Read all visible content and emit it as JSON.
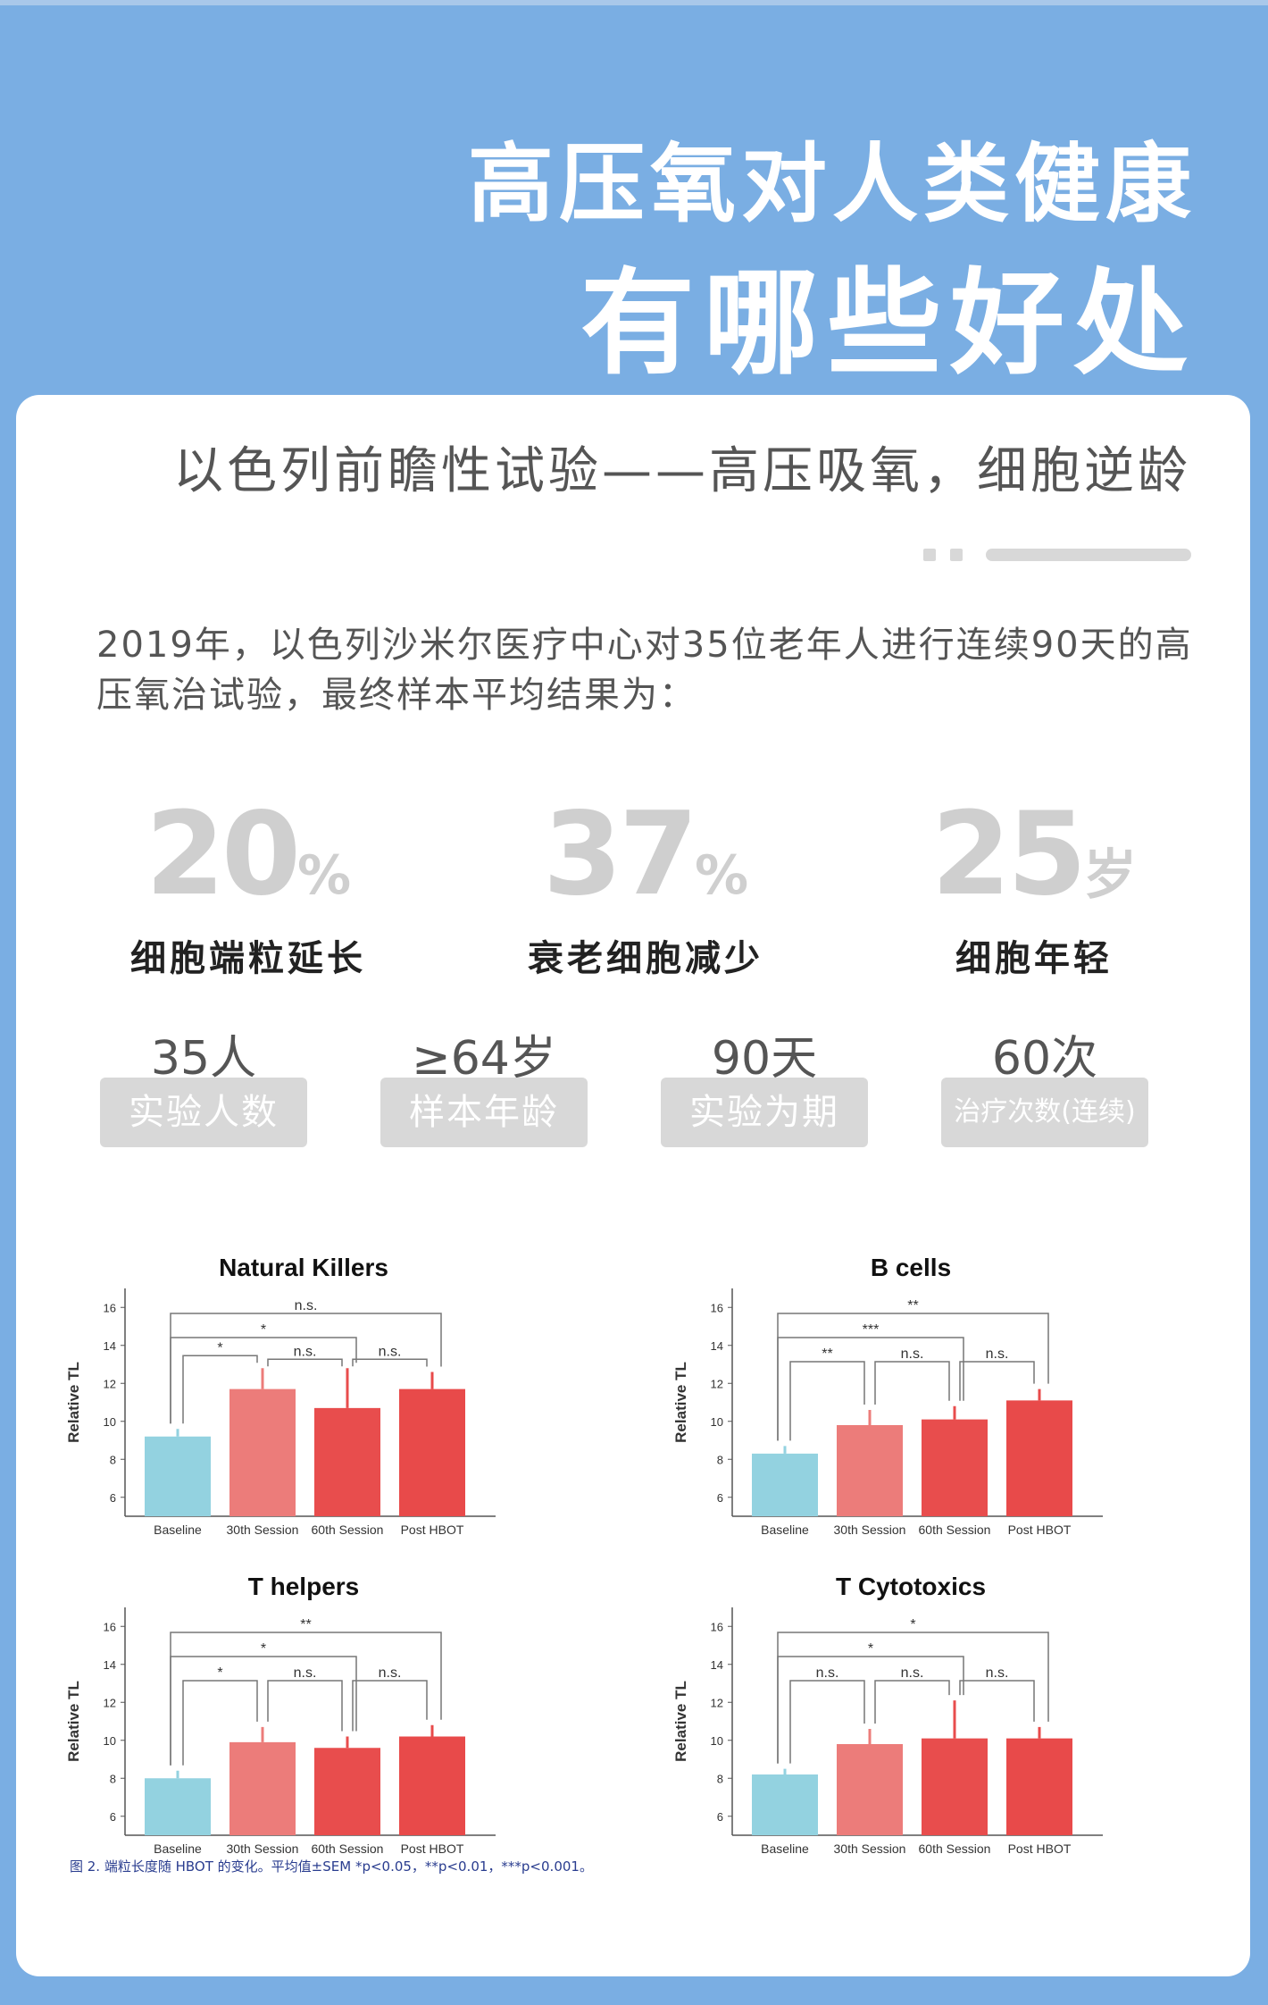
{
  "header": {
    "title_line1": "高压氧对人类健康",
    "title_line2": "有哪些好处"
  },
  "card": {
    "subtitle": "以色列前瞻性试验——高压吸氧，细胞逆龄",
    "intro": "2019年，以色列沙米尔医疗中心对35位老年人进行连续90天的高压氧治试验，最终样本平均结果为："
  },
  "stats": [
    {
      "value": "20",
      "unit": "%",
      "label": "细胞端粒延长"
    },
    {
      "value": "37",
      "unit": "%",
      "label": "衰老细胞减少"
    },
    {
      "value": "25",
      "unit": "岁",
      "label": "细胞年轻"
    }
  ],
  "facts": [
    {
      "value": "35人",
      "label": "实验人数"
    },
    {
      "value": "≥64岁",
      "label": "样本年龄"
    },
    {
      "value": "90天",
      "label": "实验为期"
    },
    {
      "value": "60次",
      "label": "治疗次数(连续)"
    }
  ],
  "colors": {
    "baseline": "#93d2e0",
    "session30": "#ec7c7a",
    "session60": "#e84d4d",
    "post": "#e84a4a",
    "stat_gray": "#cfcfcf"
  },
  "figure_caption": "图 2. 端粒长度随 HBOT 的变化。平均值±SEM *p<0.05，**p<0.01，***p<0.001。",
  "chart_data": [
    {
      "type": "bar",
      "title": "Natural Killers",
      "ylabel": "Relative TL",
      "categories": [
        "Baseline",
        "30th Session",
        "60th Session",
        "Post HBOT"
      ],
      "values": [
        9.2,
        11.7,
        10.7,
        11.7
      ],
      "errors": [
        0.4,
        1.1,
        2.1,
        0.9
      ],
      "ylim": [
        5,
        17
      ],
      "yticks": [
        6,
        8,
        10,
        12,
        14,
        16
      ],
      "annotations": [
        {
          "from": 0,
          "to": 3,
          "label": "n.s."
        },
        {
          "from": 0,
          "to": 2,
          "label": "*"
        },
        {
          "from": 0,
          "to": 1,
          "label": "*"
        },
        {
          "from": 1,
          "to": 2,
          "label": "n.s."
        },
        {
          "from": 2,
          "to": 3,
          "label": "n.s."
        }
      ]
    },
    {
      "type": "bar",
      "title": "B cells",
      "ylabel": "Relative TL",
      "categories": [
        "Baseline",
        "30th Session",
        "60th Session",
        "Post HBOT"
      ],
      "values": [
        8.3,
        9.8,
        10.1,
        11.1
      ],
      "errors": [
        0.4,
        0.8,
        0.7,
        0.6
      ],
      "ylim": [
        5,
        17
      ],
      "yticks": [
        6,
        8,
        10,
        12,
        14,
        16
      ],
      "annotations": [
        {
          "from": 0,
          "to": 3,
          "label": "**"
        },
        {
          "from": 0,
          "to": 2,
          "label": "***"
        },
        {
          "from": 0,
          "to": 1,
          "label": "**"
        },
        {
          "from": 1,
          "to": 2,
          "label": "n.s."
        },
        {
          "from": 2,
          "to": 3,
          "label": "n.s."
        }
      ]
    },
    {
      "type": "bar",
      "title": "T helpers",
      "ylabel": "Relative TL",
      "categories": [
        "Baseline",
        "30th Session",
        "60th Session",
        "Post HBOT"
      ],
      "values": [
        8.0,
        9.9,
        9.6,
        10.2
      ],
      "errors": [
        0.4,
        0.8,
        0.6,
        0.6
      ],
      "ylim": [
        5,
        17
      ],
      "yticks": [
        6,
        8,
        10,
        12,
        14,
        16
      ],
      "annotations": [
        {
          "from": 0,
          "to": 3,
          "label": "**"
        },
        {
          "from": 0,
          "to": 2,
          "label": "*"
        },
        {
          "from": 0,
          "to": 1,
          "label": "*"
        },
        {
          "from": 1,
          "to": 2,
          "label": "n.s."
        },
        {
          "from": 2,
          "to": 3,
          "label": "n.s."
        }
      ]
    },
    {
      "type": "bar",
      "title": "T Cytotoxics",
      "ylabel": "Relative TL",
      "categories": [
        "Baseline",
        "30th Session",
        "60th Session",
        "Post HBOT"
      ],
      "values": [
        8.2,
        9.8,
        10.1,
        10.1
      ],
      "errors": [
        0.3,
        0.8,
        2.0,
        0.6
      ],
      "ylim": [
        5,
        17
      ],
      "yticks": [
        6,
        8,
        10,
        12,
        14,
        16
      ],
      "annotations": [
        {
          "from": 0,
          "to": 3,
          "label": "*"
        },
        {
          "from": 0,
          "to": 2,
          "label": "*"
        },
        {
          "from": 0,
          "to": 1,
          "label": "n.s."
        },
        {
          "from": 1,
          "to": 2,
          "label": "n.s."
        },
        {
          "from": 2,
          "to": 3,
          "label": "n.s."
        }
      ]
    }
  ]
}
